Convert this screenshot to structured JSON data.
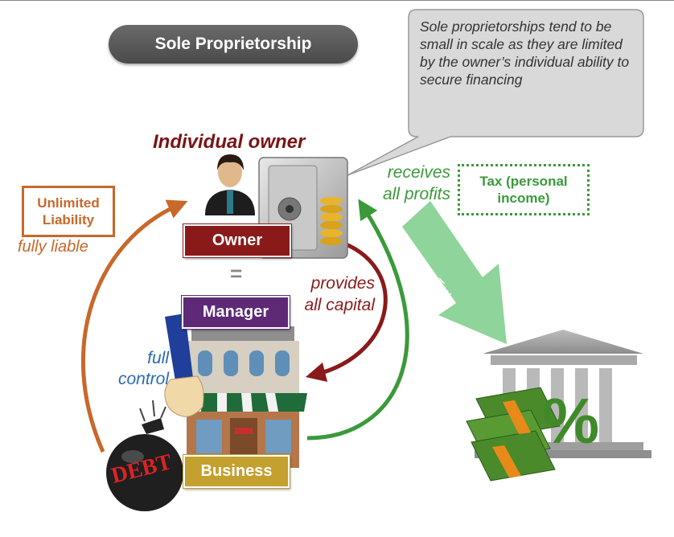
{
  "title": "Sole Proprietorship",
  "callout": "Sole proprietorships tend to be small in scale as they are limited by the owner’s individual ability to secure financing",
  "owner_heading": "Individual owner",
  "labels": {
    "owner": "Owner",
    "equals": "=",
    "manager": "Manager",
    "business": "Business"
  },
  "liability": {
    "box_line1": "Unlimited",
    "box_line2": "Liability",
    "caption": "fully liable"
  },
  "control": {
    "line1": "full",
    "line2": "control"
  },
  "capital": {
    "line1": "provides",
    "line2": "all capital"
  },
  "profits": {
    "line1": "receives",
    "line2": "all profits"
  },
  "tax": {
    "box_line1": "Tax (personal",
    "box_line2": "income)",
    "arrow_label": "Tax"
  },
  "debt_text": "DEBT",
  "colors": {
    "owner_red": "#8a1a1a",
    "manager_purple": "#5e2a78",
    "business_gold": "#c4a02e",
    "liability_orange": "#c8682a",
    "profit_green": "#3a9a3a",
    "control_blue": "#2a6ab0",
    "tax_arrow_green": "#8fd49a"
  }
}
